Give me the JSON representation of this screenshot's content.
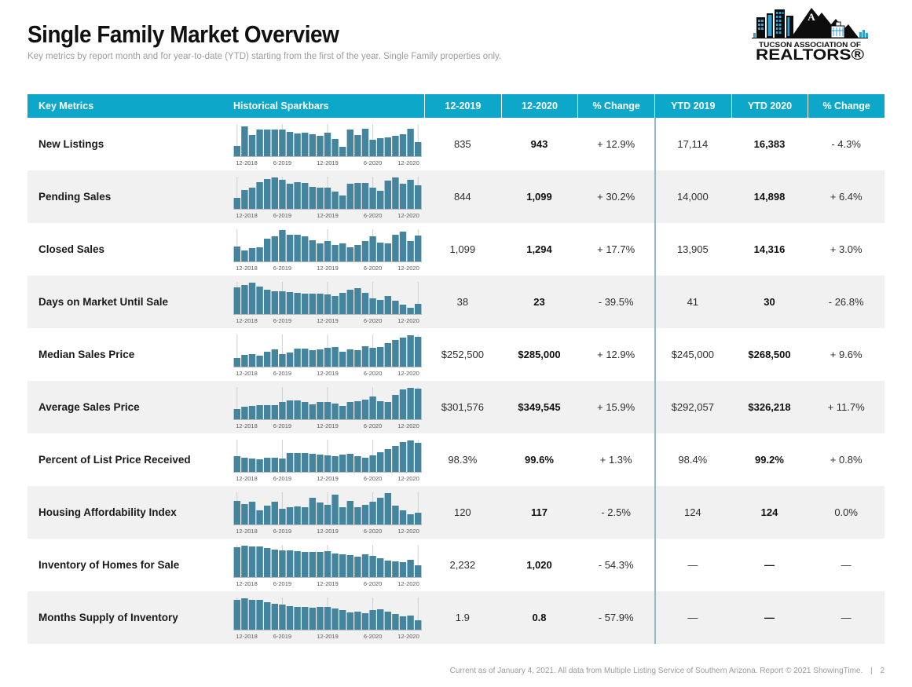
{
  "page": {
    "title": "Single Family Market Overview",
    "subtitle": "Key metrics by report month and for year-to-date (YTD) starting from the first of the year. Single Family properties only.",
    "footer": {
      "text": "Current as of January 4, 2021. All data from Multiple Listing Service of Southern Arizona. Report © 2021 ShowingTime.",
      "separator": "|",
      "page_number": "2"
    }
  },
  "logo": {
    "org_line1": "TUCSON ASSOCIATION OF",
    "org_line2": "REALTORS®",
    "mountain_letter": "A"
  },
  "colors": {
    "header_bg": "#0DA7C9",
    "bar_fill": "#44849D",
    "row_alt_bg": "#F1F1F1",
    "divider": "#8FBACD",
    "gridline": "#CFCFCF",
    "baseline": "#B9B9B9",
    "logo_accent": "#2AA2D4"
  },
  "table": {
    "columns": [
      "Key Metrics",
      "Historical Sparkbars",
      "12-2019",
      "12-2020",
      "% Change",
      "YTD 2019",
      "YTD 2020",
      "% Change"
    ],
    "sparkbar_axis_labels": [
      "12-2018",
      "6-2019",
      "12-2019",
      "6-2020",
      "12-2020"
    ],
    "rows": [
      {
        "metric": "New Listings",
        "values": [
          "835",
          "943",
          "+ 12.9%",
          "17,114",
          "16,383",
          "- 4.3%"
        ],
        "sparkbar": [
          0.32,
          0.96,
          0.68,
          0.85,
          0.85,
          0.85,
          0.85,
          0.78,
          0.72,
          0.74,
          0.7,
          0.64,
          0.75,
          0.55,
          0.3,
          0.85,
          0.68,
          0.88,
          0.52,
          0.58,
          0.6,
          0.64,
          0.7,
          0.88,
          0.45
        ]
      },
      {
        "metric": "Pending Sales",
        "values": [
          "844",
          "1,099",
          "+ 30.2%",
          "14,000",
          "14,898",
          "+ 6.4%"
        ],
        "sparkbar": [
          0.35,
          0.6,
          0.68,
          0.85,
          0.95,
          1.0,
          0.93,
          0.8,
          0.85,
          0.82,
          0.7,
          0.68,
          0.68,
          0.55,
          0.42,
          0.8,
          0.82,
          0.82,
          0.68,
          0.58,
          0.9,
          1.0,
          0.8,
          0.92,
          0.75
        ]
      },
      {
        "metric": "Closed Sales",
        "values": [
          "1,099",
          "1,294",
          "+ 17.7%",
          "13,905",
          "14,316",
          "+ 3.0%"
        ],
        "sparkbar": [
          0.48,
          0.35,
          0.42,
          0.45,
          0.72,
          0.8,
          1.0,
          0.85,
          0.85,
          0.8,
          0.68,
          0.58,
          0.65,
          0.52,
          0.58,
          0.45,
          0.52,
          0.65,
          0.8,
          0.6,
          0.58,
          0.85,
          0.95,
          0.65,
          0.82
        ]
      },
      {
        "metric": "Days on Market Until Sale",
        "values": [
          "38",
          "23",
          "- 39.5%",
          "41",
          "30",
          "- 26.8%"
        ],
        "sparkbar": [
          0.85,
          0.92,
          1.0,
          0.88,
          0.78,
          0.72,
          0.72,
          0.7,
          0.68,
          0.66,
          0.64,
          0.64,
          0.62,
          0.58,
          0.68,
          0.78,
          0.82,
          0.68,
          0.5,
          0.45,
          0.58,
          0.42,
          0.3,
          0.2,
          0.32
        ]
      },
      {
        "metric": "Median Sales Price",
        "values": [
          "$252,500",
          "$285,000",
          "+ 12.9%",
          "$245,000",
          "$268,500",
          "+ 9.6%"
        ],
        "sparkbar": [
          0.28,
          0.38,
          0.4,
          0.35,
          0.48,
          0.55,
          0.4,
          0.45,
          0.58,
          0.58,
          0.52,
          0.56,
          0.6,
          0.62,
          0.48,
          0.55,
          0.52,
          0.66,
          0.6,
          0.62,
          0.75,
          0.85,
          0.92,
          1.0,
          0.95
        ]
      },
      {
        "metric": "Average Sales Price",
        "values": [
          "$301,576",
          "$349,545",
          "+ 15.9%",
          "$292,057",
          "$326,218",
          "+ 11.7%"
        ],
        "sparkbar": [
          0.32,
          0.4,
          0.42,
          0.44,
          0.46,
          0.44,
          0.56,
          0.6,
          0.6,
          0.55,
          0.48,
          0.56,
          0.56,
          0.5,
          0.42,
          0.56,
          0.58,
          0.62,
          0.72,
          0.58,
          0.55,
          0.78,
          0.95,
          1.0,
          0.97
        ]
      },
      {
        "metric": "Percent of List Price Received",
        "values": [
          "98.3%",
          "99.6%",
          "+ 1.3%",
          "98.4%",
          "99.2%",
          "+ 0.8%"
        ],
        "sparkbar": [
          0.5,
          0.46,
          0.42,
          0.4,
          0.44,
          0.46,
          0.42,
          0.6,
          0.6,
          0.6,
          0.58,
          0.54,
          0.52,
          0.5,
          0.56,
          0.58,
          0.5,
          0.44,
          0.52,
          0.62,
          0.72,
          0.82,
          0.95,
          1.0,
          0.93
        ]
      },
      {
        "metric": "Housing Affordability Index",
        "values": [
          "120",
          "117",
          "- 2.5%",
          "124",
          "124",
          "0.0%"
        ],
        "sparkbar": [
          0.75,
          0.65,
          0.72,
          0.45,
          0.6,
          0.72,
          0.5,
          0.56,
          0.58,
          0.55,
          0.85,
          0.7,
          0.62,
          0.95,
          0.55,
          0.75,
          0.55,
          0.62,
          0.72,
          0.85,
          1.0,
          0.6,
          0.45,
          0.32,
          0.38
        ]
      },
      {
        "metric": "Inventory of Homes for Sale",
        "values": [
          "2,232",
          "1,020",
          "- 54.3%",
          "—",
          "—",
          "—"
        ],
        "sparkbar": [
          0.95,
          1.0,
          0.97,
          0.97,
          0.92,
          0.88,
          0.86,
          0.85,
          0.82,
          0.8,
          0.8,
          0.8,
          0.82,
          0.74,
          0.72,
          0.7,
          0.66,
          0.72,
          0.68,
          0.6,
          0.52,
          0.5,
          0.48,
          0.56,
          0.38
        ]
      },
      {
        "metric": "Months Supply of Inventory",
        "values": [
          "1.9",
          "0.8",
          "- 57.9%",
          "—",
          "—",
          "—"
        ],
        "sparkbar": [
          0.95,
          1.0,
          0.96,
          0.96,
          0.88,
          0.82,
          0.8,
          0.76,
          0.72,
          0.72,
          0.7,
          0.72,
          0.72,
          0.68,
          0.62,
          0.56,
          0.58,
          0.52,
          0.62,
          0.64,
          0.58,
          0.5,
          0.42,
          0.44,
          0.3
        ]
      }
    ]
  }
}
